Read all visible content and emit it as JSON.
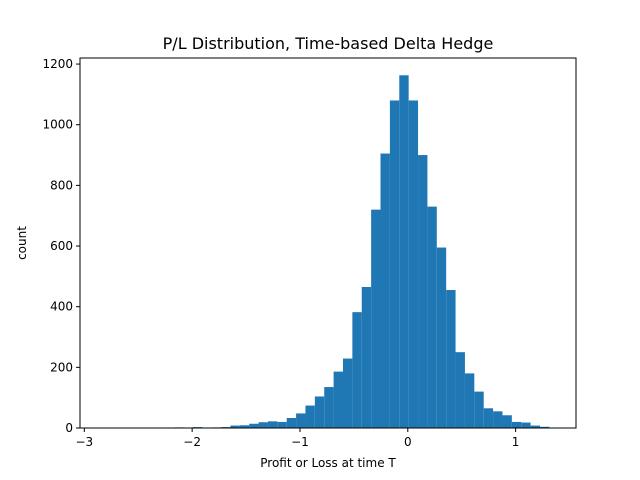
{
  "chart_data": {
    "type": "bar",
    "title": "P/L Distribution, Time-based Delta Hedge",
    "xlabel": "Profit or Loss at time T",
    "ylabel": "count",
    "xlim": [
      -3.04,
      1.56
    ],
    "ylim": [
      0,
      1220
    ],
    "x_ticks": [
      -3,
      -2,
      -1,
      0,
      1
    ],
    "x_tick_labels": [
      "−3",
      "−2",
      "−1",
      "0",
      "1"
    ],
    "y_ticks": [
      0,
      200,
      400,
      600,
      800,
      1000,
      1200
    ],
    "y_tick_labels": [
      "0",
      "200",
      "400",
      "600",
      "800",
      "1000",
      "1200"
    ],
    "bar_color": "#1f77b4",
    "grid": false,
    "bin_edges": [
      -2.95,
      -2.863,
      -2.776,
      -2.689,
      -2.602,
      -2.515,
      -2.428,
      -2.341,
      -2.254,
      -2.167,
      -2.08,
      -1.993,
      -1.906,
      -1.819,
      -1.732,
      -1.645,
      -1.558,
      -1.471,
      -1.384,
      -1.297,
      -1.21,
      -1.123,
      -1.036,
      -0.949,
      -0.862,
      -0.775,
      -0.688,
      -0.601,
      -0.514,
      -0.427,
      -0.34,
      -0.253,
      -0.166,
      -0.079,
      0.008,
      0.095,
      0.182,
      0.269,
      0.356,
      0.443,
      0.53,
      0.617,
      0.704,
      0.791,
      0.878,
      0.965,
      1.052,
      1.139,
      1.226,
      1.313,
      1.4
    ],
    "counts": [
      1,
      0,
      0,
      0,
      0,
      0,
      0,
      0,
      0,
      2,
      1,
      3,
      1,
      2,
      3,
      8,
      9,
      14,
      19,
      22,
      20,
      33,
      48,
      74,
      104,
      135,
      186,
      229,
      382,
      465,
      720,
      905,
      1080,
      1163,
      1080,
      900,
      730,
      595,
      455,
      250,
      180,
      120,
      65,
      55,
      42,
      20,
      18,
      8,
      4,
      1
    ]
  }
}
